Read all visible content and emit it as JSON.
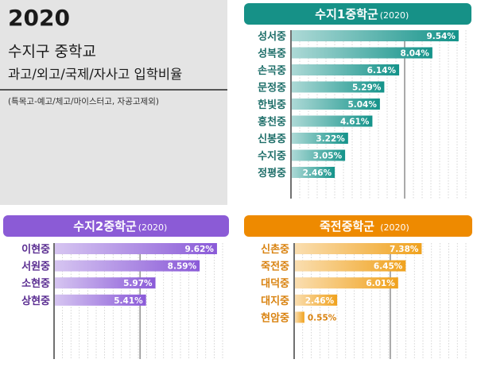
{
  "title_box": {
    "year": "2020",
    "main": "수지구 중학교",
    "sub": "과고/외고/국제/자사고 입학비율",
    "note": "(특목고-예고/체고/마이스터고, 자공고제외)"
  },
  "chart_data": [
    {
      "type": "bar",
      "orientation": "horizontal",
      "title": "수지1중학군",
      "year": "(2020)",
      "categories": [
        "성서중",
        "성복중",
        "손곡중",
        "문정중",
        "한빛중",
        "홍천중",
        "신봉중",
        "수지중",
        "정평중"
      ],
      "values": [
        9.54,
        8.04,
        6.14,
        5.29,
        5.04,
        4.61,
        3.22,
        3.05,
        2.46
      ],
      "labels": [
        "9.54%",
        "8.04%",
        "6.14%",
        "5.29%",
        "5.04%",
        "4.61%",
        "3.22%",
        "3.05%",
        "2.46%"
      ],
      "unit": "%",
      "xlim": [
        0,
        10
      ],
      "color": "#14938a",
      "label_color": "#1e6e69",
      "header_color": "#169187"
    },
    {
      "type": "bar",
      "orientation": "horizontal",
      "title": "수지2중학군",
      "year": "(2020)",
      "categories": [
        "이현중",
        "서원중",
        "소현중",
        "상현중"
      ],
      "values": [
        9.62,
        8.59,
        5.97,
        5.41
      ],
      "labels": [
        "9.62%",
        "8.59%",
        "5.97%",
        "5.41%"
      ],
      "unit": "%",
      "xlim": [
        0,
        10
      ],
      "color": "#8a5ad8",
      "label_color": "#5a2d91",
      "header_color": "#8b5bd6"
    },
    {
      "type": "bar",
      "orientation": "horizontal",
      "title": "죽전중학군",
      "year": "(2020)",
      "categories": [
        "신촌중",
        "죽전중",
        "대덕중",
        "대지중",
        "현암중"
      ],
      "values": [
        7.38,
        6.45,
        6.01,
        2.46,
        0.55
      ],
      "labels": [
        "7.38%",
        "6.45%",
        "6.01%",
        "2.46%",
        "0.55%"
      ],
      "unit": "%",
      "xlim": [
        0,
        10
      ],
      "color": "#f0a21e",
      "label_color": "#d9820f",
      "header_color": "#ee8a00"
    }
  ]
}
